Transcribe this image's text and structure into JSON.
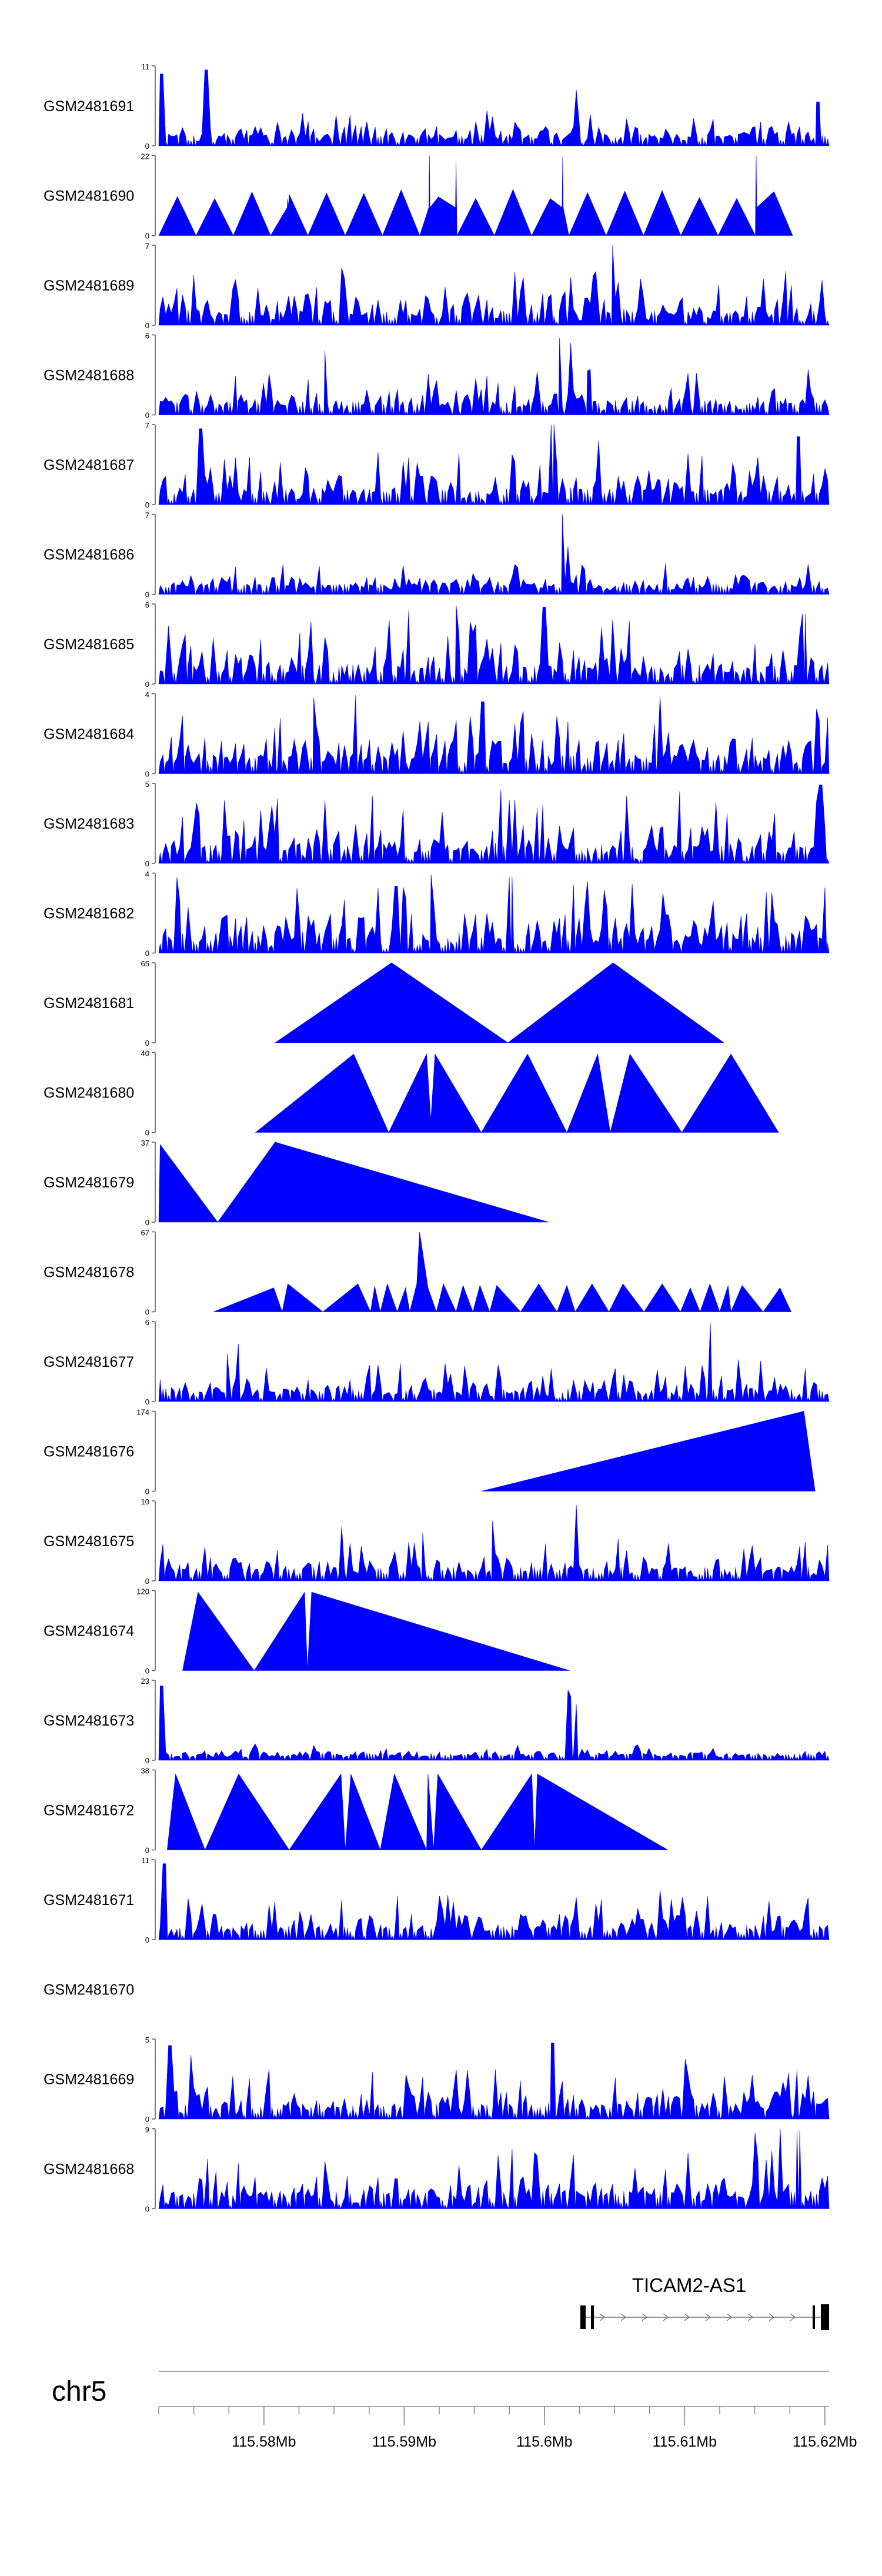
{
  "chart_data": {
    "type": "area",
    "chromosome": "chr5",
    "x_range": [
      115.5725,
      115.6203
    ],
    "x_unit": "Mb",
    "x_ticks": [
      115.58,
      115.59,
      115.6,
      115.61,
      115.62
    ],
    "x_tick_labels": [
      "115.58Mb",
      "115.59Mb",
      "115.6Mb",
      "115.61Mb",
      "115.62Mb"
    ],
    "minor_tick_step": 0.0025,
    "fill_color": "#0000ff",
    "gene": {
      "name": "TICAM2-AS1",
      "start": 115.6029,
      "end": 115.6204
    },
    "tracks": [
      {
        "name": "GSM2481691",
        "ymax": 11,
        "ymin_label": "0",
        "ymax_label": "11",
        "pattern": "noise",
        "seed": 1,
        "base": 0.25,
        "peaks": [
          [
            115.5727,
            0.9
          ],
          [
            115.5759,
            0.95
          ],
          [
            115.6022,
            0.7
          ],
          [
            115.6195,
            0.55
          ]
        ]
      },
      {
        "name": "GSM2481690",
        "ymax": 22,
        "ymin_label": "0",
        "ymax_label": "22",
        "pattern": "tri",
        "seed": 2,
        "x_start": 115.5725,
        "x_end": 115.6177,
        "count": 17,
        "hmin": 0.45,
        "hmax": 0.58,
        "spikes": [
          [
            115.5817,
            0.46
          ],
          [
            115.5918,
            1.0
          ],
          [
            115.5937,
            0.93
          ],
          [
            115.6013,
            0.98
          ],
          [
            115.6151,
            1.0
          ]
        ]
      },
      {
        "name": "GSM2481689",
        "ymax": 7,
        "ymin_label": "0",
        "ymax_label": "7",
        "pattern": "noise",
        "seed": 3,
        "base": 0.38,
        "peaks": [
          [
            115.6049,
            1.0
          ],
          [
            115.5855,
            0.72
          ],
          [
            115.5985,
            0.6
          ]
        ]
      },
      {
        "name": "GSM2481688",
        "ymax": 6,
        "ymin_label": "0",
        "ymax_label": "6",
        "pattern": "noise",
        "seed": 4,
        "base": 0.32,
        "peaks": [
          [
            115.6011,
            0.96
          ],
          [
            115.6018,
            0.9
          ],
          [
            115.5844,
            0.8
          ],
          [
            115.6031,
            0.55
          ]
        ]
      },
      {
        "name": "GSM2481687",
        "ymax": 7,
        "ymin_label": "0",
        "ymax_label": "7",
        "pattern": "noise",
        "seed": 5,
        "base": 0.38,
        "peaks": [
          [
            115.5755,
            0.95
          ],
          [
            115.6006,
            1.0
          ],
          [
            115.6038,
            0.8
          ],
          [
            115.6181,
            0.85
          ]
        ]
      },
      {
        "name": "GSM2481686",
        "ymax": 7,
        "ymin_label": "0",
        "ymax_label": "7",
        "pattern": "noise",
        "seed": 6,
        "base": 0.22,
        "peaks": [
          [
            115.6013,
            1.0
          ],
          [
            115.6017,
            0.6
          ]
        ]
      },
      {
        "name": "GSM2481685",
        "ymax": 6,
        "ymin_label": "0",
        "ymax_label": "6",
        "pattern": "noise",
        "seed": 7,
        "base": 0.45,
        "peaks": [
          [
            115.5937,
            0.98
          ],
          [
            115.6,
            0.96
          ],
          [
            115.5903,
            0.92
          ],
          [
            115.6185,
            0.88
          ]
        ]
      },
      {
        "name": "GSM2481684",
        "ymax": 4,
        "ymin_label": "0",
        "ymax_label": "4",
        "pattern": "noise",
        "seed": 8,
        "base": 0.45,
        "peaks": [
          [
            115.6083,
            0.97
          ],
          [
            115.5866,
            0.98
          ],
          [
            115.5956,
            0.9
          ],
          [
            115.5835,
            0.95
          ]
        ]
      },
      {
        "name": "GSM2481683",
        "ymax": 5,
        "ymin_label": "0",
        "ymax_label": "5",
        "pattern": "noise",
        "seed": 9,
        "base": 0.48,
        "peaks": [
          [
            115.6197,
            0.98
          ],
          [
            115.5969,
            0.92
          ],
          [
            115.6096,
            0.9
          ]
        ]
      },
      {
        "name": "GSM2481682",
        "ymax": 4,
        "ymin_label": "0",
        "ymax_label": "4",
        "pattern": "noise",
        "seed": 10,
        "base": 0.5,
        "peaks": [
          [
            115.5738,
            0.95
          ],
          [
            115.5919,
            0.98
          ],
          [
            115.5976,
            0.95
          ],
          [
            115.6031,
            0.9
          ]
        ]
      },
      {
        "name": "GSM2481681",
        "ymax": 65,
        "ymin_label": "0",
        "ymax_label": "65",
        "pattern": "poly",
        "points": [
          [
            115.5808,
            0
          ],
          [
            115.5891,
            1.0
          ],
          [
            115.5974,
            0
          ],
          [
            115.6049,
            1.0
          ],
          [
            115.6128,
            0
          ]
        ]
      },
      {
        "name": "GSM2481680",
        "ymax": 40,
        "ymin_label": "0",
        "ymax_label": "40",
        "pattern": "poly",
        "points": [
          [
            115.5794,
            0
          ],
          [
            115.5864,
            0.98
          ],
          [
            115.5889,
            0
          ],
          [
            115.5916,
            0.98
          ],
          [
            115.5919,
            0.15
          ],
          [
            115.5922,
            0.98
          ],
          [
            115.5955,
            0
          ],
          [
            115.5988,
            0.98
          ],
          [
            115.6016,
            0
          ],
          [
            115.6038,
            0.98
          ],
          [
            115.6047,
            0
          ],
          [
            115.6061,
            0.98
          ],
          [
            115.6098,
            0
          ],
          [
            115.6133,
            0.98
          ],
          [
            115.6167,
            0
          ]
        ]
      },
      {
        "name": "GSM2481679",
        "ymax": 37,
        "ymin_label": "0",
        "ymax_label": "37",
        "pattern": "poly",
        "points": [
          [
            115.5725,
            0
          ],
          [
            115.5726,
            0.97
          ],
          [
            115.5767,
            0
          ],
          [
            115.5808,
            1.0
          ],
          [
            115.6003,
            0
          ]
        ]
      },
      {
        "name": "GSM2481678",
        "ymax": 67,
        "ymin_label": "0",
        "ymax_label": "67",
        "pattern": "poly",
        "points": [
          [
            115.5764,
            0
          ],
          [
            115.5807,
            0.3
          ],
          [
            115.5813,
            0
          ],
          [
            115.5817,
            0.35
          ],
          [
            115.5842,
            0
          ],
          [
            115.5867,
            0.35
          ],
          [
            115.5876,
            0
          ],
          [
            115.5879,
            0.32
          ],
          [
            115.5883,
            0
          ],
          [
            115.5888,
            0.35
          ],
          [
            115.5895,
            0
          ],
          [
            115.5901,
            0.3
          ],
          [
            115.5904,
            0
          ],
          [
            115.5909,
            0.35
          ],
          [
            115.5911,
            1.0
          ],
          [
            115.5917,
            0.3
          ],
          [
            115.5923,
            0
          ],
          [
            115.5928,
            0.35
          ],
          [
            115.5937,
            0
          ],
          [
            115.5942,
            0.33
          ],
          [
            115.5949,
            0
          ],
          [
            115.5954,
            0.33
          ],
          [
            115.5961,
            0
          ],
          [
            115.5966,
            0.33
          ],
          [
            115.5983,
            0
          ],
          [
            115.5996,
            0.35
          ],
          [
            115.6009,
            0
          ],
          [
            115.6016,
            0.33
          ],
          [
            115.6022,
            0
          ],
          [
            115.6034,
            0.35
          ],
          [
            115.6046,
            0
          ],
          [
            115.6056,
            0.35
          ],
          [
            115.6071,
            0
          ],
          [
            115.6084,
            0.35
          ],
          [
            115.6097,
            0
          ],
          [
            115.6104,
            0.3
          ],
          [
            115.6111,
            0
          ],
          [
            115.6118,
            0.35
          ],
          [
            115.6125,
            0
          ],
          [
            115.6131,
            0.33
          ],
          [
            115.6133,
            0
          ],
          [
            115.6141,
            0.33
          ],
          [
            115.6156,
            0
          ],
          [
            115.6168,
            0.3
          ],
          [
            115.6176,
            0
          ]
        ]
      },
      {
        "name": "GSM2481677",
        "ymax": 6,
        "ymin_label": "0",
        "ymax_label": "6",
        "pattern": "noise",
        "seed": 15,
        "base": 0.3,
        "peaks": [
          [
            115.6119,
            0.98
          ],
          [
            115.5782,
            0.72
          ],
          [
            115.5773,
            0.6
          ]
        ]
      },
      {
        "name": "GSM2481676",
        "ymax": 174,
        "ymin_label": "0",
        "ymax_label": "174",
        "pattern": "poly",
        "points": [
          [
            115.5955,
            0
          ],
          [
            115.6185,
            1.0
          ],
          [
            115.6193,
            0
          ]
        ]
      },
      {
        "name": "GSM2481675",
        "ymax": 10,
        "ymin_label": "0",
        "ymax_label": "10",
        "pattern": "noise",
        "seed": 17,
        "base": 0.3,
        "peaks": [
          [
            115.6022,
            0.95
          ],
          [
            115.5963,
            0.75
          ],
          [
            115.5855,
            0.68
          ],
          [
            115.5913,
            0.6
          ]
        ]
      },
      {
        "name": "GSM2481674",
        "ymax": 120,
        "ymin_label": "0",
        "ymax_label": "120",
        "pattern": "poly",
        "points": [
          [
            115.5742,
            0
          ],
          [
            115.5753,
            0.98
          ],
          [
            115.5793,
            0
          ],
          [
            115.5829,
            0.98
          ],
          [
            115.5831,
            0
          ],
          [
            115.5834,
            0.98
          ],
          [
            115.6018,
            0
          ]
        ]
      },
      {
        "name": "GSM2481673",
        "ymax": 23,
        "ymin_label": "0",
        "ymax_label": "23",
        "pattern": "noise",
        "seed": 19,
        "base": 0.12,
        "peaks": [
          [
            115.5727,
            0.93
          ],
          [
            115.6016,
            0.88
          ],
          [
            115.6019,
            0.8
          ],
          [
            115.6022,
            0.7
          ]
        ]
      },
      {
        "name": "GSM2481672",
        "ymax": 38,
        "ymin_label": "0",
        "ymax_label": "38",
        "pattern": "poly",
        "points": [
          [
            115.5731,
            0
          ],
          [
            115.5737,
            0.95
          ],
          [
            115.5758,
            0
          ],
          [
            115.5782,
            0.95
          ],
          [
            115.5818,
            0
          ],
          [
            115.5855,
            0.95
          ],
          [
            115.5858,
            0
          ],
          [
            115.5862,
            0.95
          ],
          [
            115.5883,
            0
          ],
          [
            115.5893,
            0.95
          ],
          [
            115.5916,
            0
          ],
          [
            115.5917,
            0.95
          ],
          [
            115.5921,
            0
          ],
          [
            115.5924,
            0.95
          ],
          [
            115.5955,
            0
          ],
          [
            115.5991,
            0.95
          ],
          [
            115.5993,
            0
          ],
          [
            115.5995,
            0.95
          ],
          [
            115.6088,
            0
          ]
        ]
      },
      {
        "name": "GSM2481671",
        "ymax": 11,
        "ymin_label": "0",
        "ymax_label": "11",
        "pattern": "noise",
        "seed": 21,
        "base": 0.32,
        "peaks": [
          [
            115.5729,
            0.95
          ],
          [
            115.6083,
            0.62
          ],
          [
            115.5855,
            0.5
          ]
        ]
      },
      {
        "name": "GSM2481670",
        "ymax": null,
        "ymin_label": "",
        "ymax_label": "",
        "pattern": "empty"
      },
      {
        "name": "GSM2481669",
        "ymax": 5,
        "ymin_label": "0",
        "ymax_label": "5",
        "pattern": "noise",
        "seed": 23,
        "base": 0.35,
        "peaks": [
          [
            115.6006,
            0.95
          ],
          [
            115.5733,
            0.92
          ],
          [
            115.5748,
            0.8
          ],
          [
            115.6101,
            0.75
          ]
        ]
      },
      {
        "name": "GSM2481668",
        "ymax": 9,
        "ymin_label": "0",
        "ymax_label": "9",
        "pattern": "noise",
        "seed": 24,
        "base": 0.42,
        "peaks": [
          [
            115.6168,
            1.0
          ],
          [
            115.6181,
            0.98
          ],
          [
            115.6151,
            0.95
          ],
          [
            115.5977,
            0.75
          ]
        ]
      }
    ]
  }
}
